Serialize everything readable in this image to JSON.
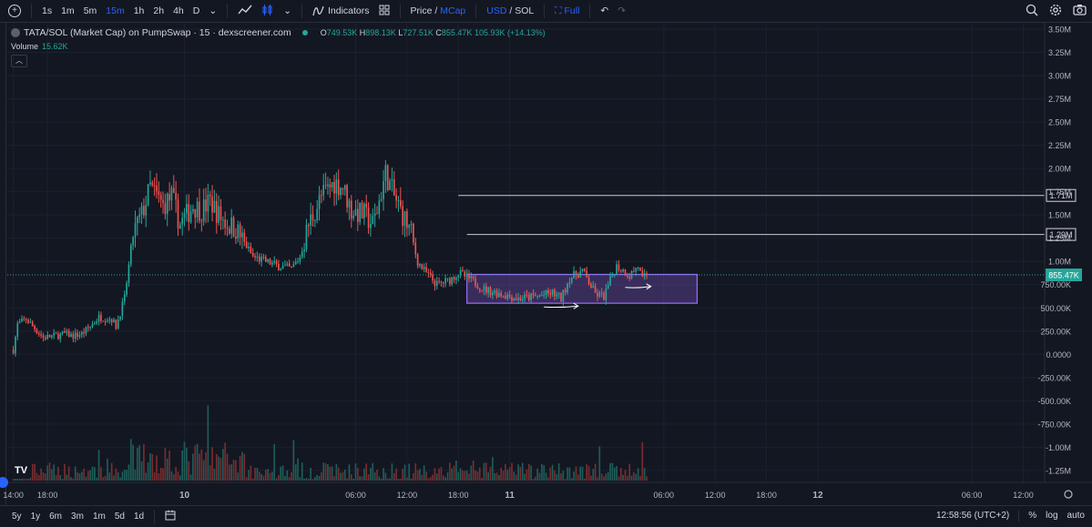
{
  "toolbar": {
    "intervals": [
      "1s",
      "1m",
      "5m",
      "15m",
      "1h",
      "2h",
      "4h",
      "D"
    ],
    "active_interval": "15m",
    "indicators_label": "Indicators",
    "price_label": "Price",
    "slash": "/",
    "mcap_label": "MCap",
    "usd_label": "USD",
    "sol_label": "SOL",
    "full_label": "Full"
  },
  "legend": {
    "title": "TATA/SOL (Market Cap) on PumpSwap · 15 · dexscreener.com",
    "o_label": "O",
    "o": "749.53K",
    "h_label": "H",
    "h": "898.13K",
    "l_label": "L",
    "l": "727.51K",
    "c_label": "C",
    "c": "855.47K",
    "change": "105.93K (+14.13%)",
    "volume_label": "Volume",
    "volume_value": "15.62K"
  },
  "bottom": {
    "ranges": [
      "5y",
      "1y",
      "6m",
      "3m",
      "1m",
      "5d",
      "1d"
    ],
    "time": "12:58:56 (UTC+2)",
    "percent": "%",
    "log": "log",
    "auto": "auto"
  },
  "colors": {
    "up": "#26a69a",
    "down": "#ef5350",
    "box": "#7e57c2",
    "bg": "#131722"
  },
  "chart_data": {
    "type": "candlestick",
    "y_ticks": [
      "3.50M",
      "3.25M",
      "3.00M",
      "2.75M",
      "2.50M",
      "2.25M",
      "2.00M",
      "1.75M",
      "1.50M",
      "1.25M",
      "1.00M",
      "750.00K",
      "500.00K",
      "250.00K",
      "0.0000",
      "-250.00K",
      "-500.00K",
      "-750.00K",
      "-1.00M",
      "-1.25M"
    ],
    "y_tick_values": [
      3.5,
      3.25,
      3.0,
      2.75,
      2.5,
      2.25,
      2.0,
      1.75,
      1.5,
      1.25,
      1.0,
      0.75,
      0.5,
      0.25,
      0,
      -0.25,
      -0.5,
      -0.75,
      -1.0,
      -1.25
    ],
    "ylim": [
      -1.3,
      3.5
    ],
    "x_ticks": [
      "14:00",
      "18:00",
      "10",
      "06:00",
      "12:00",
      "18:00",
      "11",
      "06:00",
      "12:00",
      "18:00",
      "12",
      "06:00",
      "12:00"
    ],
    "x_tick_hours": [
      0,
      4,
      20,
      40,
      46,
      52,
      58,
      76,
      82,
      88,
      94,
      112,
      118
    ],
    "xlim_hours": [
      -0.7,
      120.5
    ],
    "horizontal_lines": [
      {
        "label": "1.71M",
        "value": 1.71,
        "from_hours": 52
      },
      {
        "label": "1.29M",
        "value": 1.29,
        "from_hours": 53
      }
    ],
    "current_price": {
      "label": "855.47K",
      "value": 0.855
    },
    "box": {
      "from_hours": 53.0,
      "to_hours": 79.9,
      "top": 0.86,
      "bottom": 0.55
    },
    "arrows": [
      {
        "from_hours": 62.0,
        "to_hours": 66.0,
        "value": 0.51
      },
      {
        "from_hours": 71.5,
        "to_hours": 74.5,
        "value": 0.72
      }
    ],
    "candle_interval_hours": 0.25,
    "segments": [
      {
        "hours": 0,
        "value": 0.05
      },
      {
        "hours": 0.5,
        "value": 0.32
      },
      {
        "hours": 1.5,
        "value": 0.38
      },
      {
        "hours": 2.5,
        "value": 0.28
      },
      {
        "hours": 3.5,
        "value": 0.18
      },
      {
        "hours": 5.0,
        "value": 0.2
      },
      {
        "hours": 6.0,
        "value": 0.22
      },
      {
        "hours": 7.0,
        "value": 0.2
      },
      {
        "hours": 8.0,
        "value": 0.22
      },
      {
        "hours": 9.0,
        "value": 0.3
      },
      {
        "hours": 10.0,
        "value": 0.4
      },
      {
        "hours": 11.5,
        "value": 0.38
      },
      {
        "hours": 12.0,
        "value": 0.3
      },
      {
        "hours": 13.0,
        "value": 0.6
      },
      {
        "hours": 14.0,
        "value": 1.3
      },
      {
        "hours": 15.0,
        "value": 1.5
      },
      {
        "hours": 16.0,
        "value": 1.8
      },
      {
        "hours": 17.5,
        "value": 1.6
      },
      {
        "hours": 18.5,
        "value": 1.7
      },
      {
        "hours": 19.5,
        "value": 1.4
      },
      {
        "hours": 21.0,
        "value": 1.6
      },
      {
        "hours": 22.0,
        "value": 1.55
      },
      {
        "hours": 23.0,
        "value": 1.65
      },
      {
        "hours": 24.0,
        "value": 1.5
      },
      {
        "hours": 25.0,
        "value": 1.4
      },
      {
        "hours": 26.0,
        "value": 1.35
      },
      {
        "hours": 27.0,
        "value": 1.2
      },
      {
        "hours": 28.0,
        "value": 1.05
      },
      {
        "hours": 29.5,
        "value": 1.0
      },
      {
        "hours": 31.0,
        "value": 0.95
      },
      {
        "hours": 32.5,
        "value": 0.92
      },
      {
        "hours": 33.5,
        "value": 1.05
      },
      {
        "hours": 34.5,
        "value": 1.4
      },
      {
        "hours": 36.0,
        "value": 1.7
      },
      {
        "hours": 37.5,
        "value": 1.85
      },
      {
        "hours": 38.5,
        "value": 1.8
      },
      {
        "hours": 39.5,
        "value": 1.55
      },
      {
        "hours": 41.0,
        "value": 1.5
      },
      {
        "hours": 42.0,
        "value": 1.4
      },
      {
        "hours": 42.5,
        "value": 1.55
      },
      {
        "hours": 43.5,
        "value": 1.95
      },
      {
        "hours": 44.5,
        "value": 1.7
      },
      {
        "hours": 45.5,
        "value": 1.5
      },
      {
        "hours": 46.5,
        "value": 1.3
      },
      {
        "hours": 47.2,
        "value": 1.0
      },
      {
        "hours": 48.0,
        "value": 0.9
      },
      {
        "hours": 49.5,
        "value": 0.75
      },
      {
        "hours": 51.0,
        "value": 0.8
      },
      {
        "hours": 52.0,
        "value": 0.88
      },
      {
        "hours": 53.5,
        "value": 0.8
      },
      {
        "hours": 55.0,
        "value": 0.7
      },
      {
        "hours": 57.0,
        "value": 0.65
      },
      {
        "hours": 59.0,
        "value": 0.6
      },
      {
        "hours": 61.0,
        "value": 0.62
      },
      {
        "hours": 63.0,
        "value": 0.66
      },
      {
        "hours": 64.0,
        "value": 0.6
      },
      {
        "hours": 65.0,
        "value": 0.82
      },
      {
        "hours": 66.5,
        "value": 0.9
      },
      {
        "hours": 68.0,
        "value": 0.65
      },
      {
        "hours": 69.0,
        "value": 0.62
      },
      {
        "hours": 70.0,
        "value": 0.85
      },
      {
        "hours": 70.5,
        "value": 0.95
      },
      {
        "hours": 72.0,
        "value": 0.85
      },
      {
        "hours": 73.0,
        "value": 0.95
      },
      {
        "hours": 73.5,
        "value": 0.8
      },
      {
        "hours": 74.0,
        "value": 0.855
      }
    ],
    "candle_count": 297
  }
}
